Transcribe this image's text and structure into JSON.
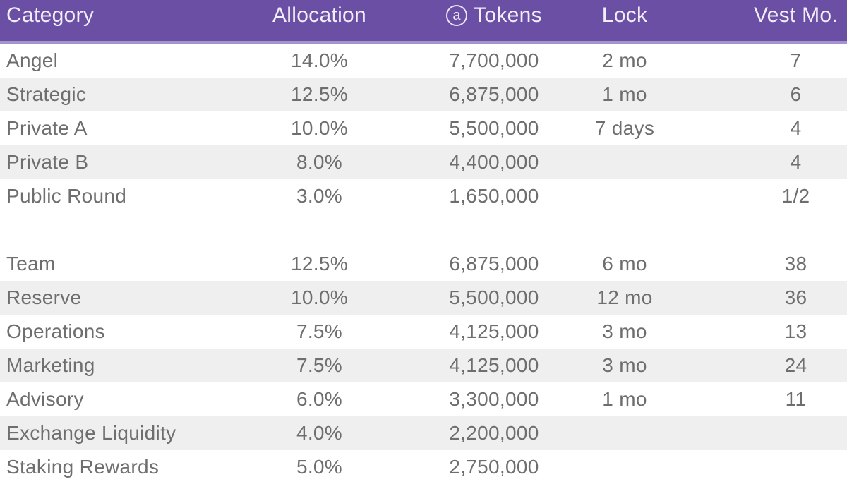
{
  "chart_data": {
    "type": "table",
    "columns": [
      "Category",
      "Allocation",
      "Tokens",
      "Lock",
      "Vest Mo."
    ],
    "tokens_icon_glyph": "a",
    "groups": [
      [
        {
          "category": "Angel",
          "allocation": "14.0%",
          "tokens": "7,700,000",
          "lock": "2 mo",
          "vest": "7"
        },
        {
          "category": "Strategic",
          "allocation": "12.5%",
          "tokens": "6,875,000",
          "lock": "1 mo",
          "vest": "6"
        },
        {
          "category": "Private A",
          "allocation": "10.0%",
          "tokens": "5,500,000",
          "lock": "7 days",
          "vest": "4"
        },
        {
          "category": "Private B",
          "allocation": "8.0%",
          "tokens": "4,400,000",
          "lock": "",
          "vest": "4"
        },
        {
          "category": "Public Round",
          "allocation": "3.0%",
          "tokens": "1,650,000",
          "lock": "",
          "vest": "1/2"
        }
      ],
      [
        {
          "category": "Team",
          "allocation": "12.5%",
          "tokens": "6,875,000",
          "lock": "6 mo",
          "vest": "38"
        },
        {
          "category": "Reserve",
          "allocation": "10.0%",
          "tokens": "5,500,000",
          "lock": "12 mo",
          "vest": "36"
        },
        {
          "category": "Operations",
          "allocation": "7.5%",
          "tokens": "4,125,000",
          "lock": "3 mo",
          "vest": "13"
        },
        {
          "category": "Marketing",
          "allocation": "7.5%",
          "tokens": "4,125,000",
          "lock": "3 mo",
          "vest": "24"
        },
        {
          "category": "Advisory",
          "allocation": "6.0%",
          "tokens": "3,300,000",
          "lock": "1 mo",
          "vest": "11"
        },
        {
          "category": "Exchange Liquidity",
          "allocation": "4.0%",
          "tokens": "2,200,000",
          "lock": "",
          "vest": ""
        },
        {
          "category": "Staking Rewards",
          "allocation": "5.0%",
          "tokens": "2,750,000",
          "lock": "",
          "vest": ""
        }
      ]
    ],
    "layout": {
      "zebra_striping": true,
      "spacer_between_groups": true
    }
  },
  "colors": {
    "header_bg": "#6a4fa4",
    "header_strip": "#a294ce",
    "header_text": "#f2eef9",
    "row_alt_bg": "#efefef",
    "row_bg": "#ffffff",
    "body_text": "#6e6e6e"
  }
}
